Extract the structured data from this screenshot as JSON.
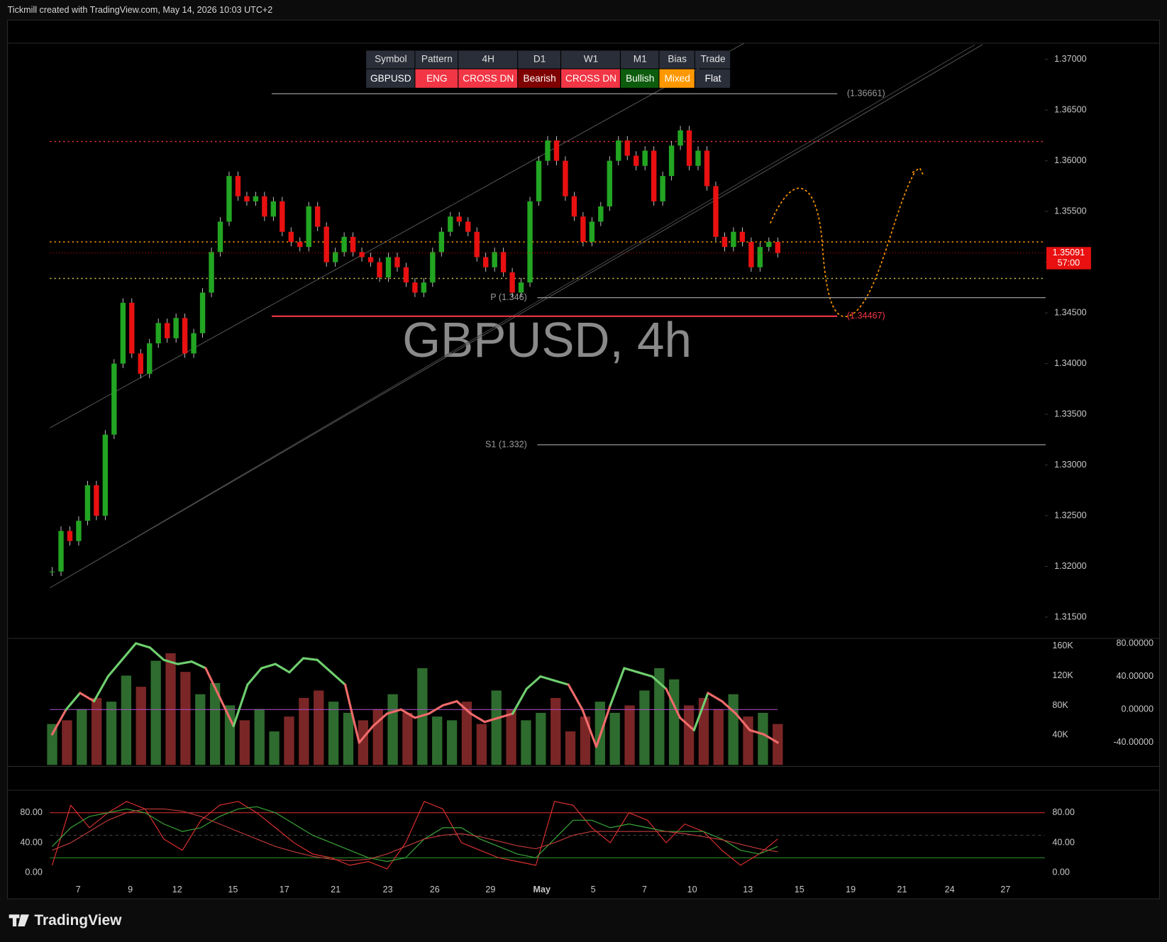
{
  "header": {
    "title": "Tickmill created with TradingView.com, May 14, 2026 10:03 UTC+2"
  },
  "footer": {
    "brand": "TradingView"
  },
  "table": {
    "header": [
      "Symbol",
      "Pattern",
      "4H",
      "D1",
      "W1",
      "M1",
      "Bias",
      "Trade"
    ],
    "row": [
      "GBPUSD",
      "ENG",
      "CROSS DN",
      "Bearish",
      "CROSS DN",
      "Bullish",
      "Mixed",
      "Flat"
    ],
    "row_colors": [
      "#2a2e39",
      "#f23645",
      "#f23645",
      "#7f0000",
      "#f23645",
      "#0d5c0d",
      "#ff9800",
      "#2a2e39"
    ]
  },
  "x_axis": {
    "labels": [
      "7",
      "9",
      "12",
      "15",
      "17",
      "21",
      "23",
      "26",
      "29",
      "May",
      "5",
      "7",
      "10",
      "13",
      "15",
      "19",
      "21",
      "24",
      "27"
    ]
  },
  "chart_data": [
    {
      "type": "candlestick",
      "title": "GBPUSD, 4h",
      "up_color": "#22a522",
      "down_color": "#e81010",
      "values": [
        1.3195,
        1.3235,
        1.3225,
        1.3245,
        1.328,
        1.325,
        1.333,
        1.34,
        1.346,
        1.341,
        1.339,
        1.342,
        1.344,
        1.3425,
        1.3445,
        1.341,
        1.343,
        1.347,
        1.351,
        1.354,
        1.3585,
        1.3565,
        1.356,
        1.3565,
        1.3545,
        1.356,
        1.353,
        1.352,
        1.3515,
        1.3555,
        1.3535,
        1.35,
        1.351,
        1.3525,
        1.351,
        1.3505,
        1.35,
        1.3485,
        1.3505,
        1.3495,
        1.348,
        1.347,
        1.348,
        1.351,
        1.353,
        1.3545,
        1.354,
        1.353,
        1.3505,
        1.3495,
        1.351,
        1.349,
        1.347,
        1.348,
        1.356,
        1.36,
        1.362,
        1.36,
        1.3565,
        1.3545,
        1.352,
        1.354,
        1.3555,
        1.36,
        1.362,
        1.3605,
        1.3595,
        1.361,
        1.356,
        1.3585,
        1.3615,
        1.363,
        1.3595,
        1.361,
        1.3575,
        1.3525,
        1.3515,
        1.353,
        1.352,
        1.3495,
        1.3515,
        1.352,
        1.35091
      ],
      "ylim": [
        1.3129,
        1.3716
      ],
      "yticks": [
        {
          "value": 1.37,
          "label": "1.37000"
        },
        {
          "value": 1.365,
          "label": "1.36500"
        },
        {
          "value": 1.36,
          "label": "1.36000"
        },
        {
          "value": 1.355,
          "label": "1.35500"
        },
        {
          "value": 1.35,
          "label": "1.35000"
        },
        {
          "value": 1.345,
          "label": "1.34500"
        },
        {
          "value": 1.34,
          "label": "1.34000"
        },
        {
          "value": 1.335,
          "label": "1.33500"
        },
        {
          "value": 1.33,
          "label": "1.33000"
        },
        {
          "value": 1.325,
          "label": "1.32500"
        },
        {
          "value": 1.32,
          "label": "1.32000"
        },
        {
          "value": 1.315,
          "label": "1.31500"
        }
      ],
      "levels": [
        {
          "value": 1.36661,
          "label": "(1.36661)",
          "color": "#9a9a9a"
        },
        {
          "value": 1.34467,
          "label": "(1.34467)",
          "color": "#f23645"
        },
        {
          "value": 1.3465,
          "label": "P (1.346)",
          "color": "#9a9a9a"
        },
        {
          "value": 1.332,
          "label": "S1 (1.332)",
          "color": "#9a9a9a"
        }
      ],
      "dotted_levels": [
        {
          "value": 1.3619,
          "color": "#f23645"
        },
        {
          "value": 1.352,
          "color": "#ff9800"
        },
        {
          "value": 1.3484,
          "color": "#d4c84a"
        }
      ],
      "last_price": 1.35091,
      "countdown": "57:00"
    },
    {
      "type": "bar",
      "colors": [
        "#2e6b2e",
        "#7a2626"
      ],
      "values": [
        55000,
        60000,
        75000,
        90000,
        85000,
        120000,
        105000,
        140000,
        150000,
        125000,
        95000,
        110000,
        80000,
        60000,
        75000,
        45000,
        65000,
        90000,
        100000,
        85000,
        70000,
        60000,
        75000,
        95000,
        70000,
        130000,
        65000,
        60000,
        85000,
        55000,
        100000,
        75000,
        60000,
        70000,
        90000,
        45000,
        65000,
        85000,
        70000,
        80000,
        100000,
        130000,
        115000,
        80000,
        90000,
        75000,
        95000,
        65000,
        70000,
        55000
      ],
      "ylim": [
        0,
        170000
      ],
      "yticks": [
        {
          "value": 160000,
          "label": "160K"
        },
        {
          "value": 120000,
          "label": "120K"
        },
        {
          "value": 80000,
          "label": "80K"
        },
        {
          "value": 40000,
          "label": "40K"
        }
      ],
      "series": [
        {
          "color": "#6fcf6f",
          "axis": "y2",
          "values": [
            -30,
            0,
            20,
            10,
            40,
            60,
            80,
            75,
            60,
            55,
            58,
            50,
            15,
            -20,
            30,
            50,
            55,
            45,
            62,
            60,
            45,
            30,
            -40,
            -20,
            -5,
            0,
            -10,
            -5,
            5,
            10,
            -5,
            -15,
            -10,
            -5,
            25,
            40,
            35,
            30,
            0,
            -45,
            5,
            50,
            45,
            40,
            25,
            -10,
            -25,
            20,
            10,
            -5,
            -25,
            -30,
            -40
          ]
        }
      ],
      "y2lim": [
        -67,
        86
      ],
      "y2ticks": [
        {
          "value": 80,
          "label": "80.00000"
        },
        {
          "value": 40,
          "label": "40.00000"
        },
        {
          "value": 0,
          "label": "0.00000"
        },
        {
          "value": -40,
          "label": "-40.00000"
        }
      ]
    },
    {
      "type": "line",
      "series": [
        {
          "color": "#e03030",
          "values": [
            10,
            90,
            60,
            80,
            95,
            85,
            45,
            30,
            70,
            90,
            95,
            80,
            60,
            40,
            25,
            20,
            10,
            15,
            5,
            40,
            95,
            85,
            40,
            30,
            20,
            15,
            10,
            95,
            90,
            60,
            40,
            80,
            70,
            40,
            65,
            55,
            30,
            10,
            25,
            45
          ]
        },
        {
          "color": "#3aa83a",
          "values": [
            35,
            60,
            75,
            80,
            85,
            80,
            65,
            55,
            60,
            75,
            85,
            88,
            80,
            65,
            50,
            40,
            30,
            20,
            15,
            20,
            45,
            60,
            60,
            45,
            35,
            25,
            20,
            45,
            70,
            70,
            60,
            65,
            60,
            55,
            55,
            55,
            45,
            30,
            25,
            35
          ]
        },
        {
          "color": "#c03a3a",
          "values": [
            30,
            40,
            55,
            70,
            80,
            85,
            85,
            82,
            75,
            65,
            55,
            45,
            35,
            28,
            22,
            18,
            16,
            18,
            25,
            35,
            45,
            50,
            52,
            48,
            42,
            36,
            32,
            40,
            50,
            55,
            55,
            55,
            55,
            55,
            52,
            48,
            44,
            38,
            32,
            28
          ]
        }
      ],
      "ylim": [
        -7,
        110
      ],
      "yticks": [
        {
          "value": 80,
          "label": "80.00"
        },
        {
          "value": 40,
          "label": "40.00"
        },
        {
          "value": 0,
          "label": "0.00"
        }
      ],
      "bands": [
        {
          "value": 80,
          "color": "#e03030"
        },
        {
          "value": 20,
          "color": "#2e9a2e"
        }
      ]
    }
  ]
}
